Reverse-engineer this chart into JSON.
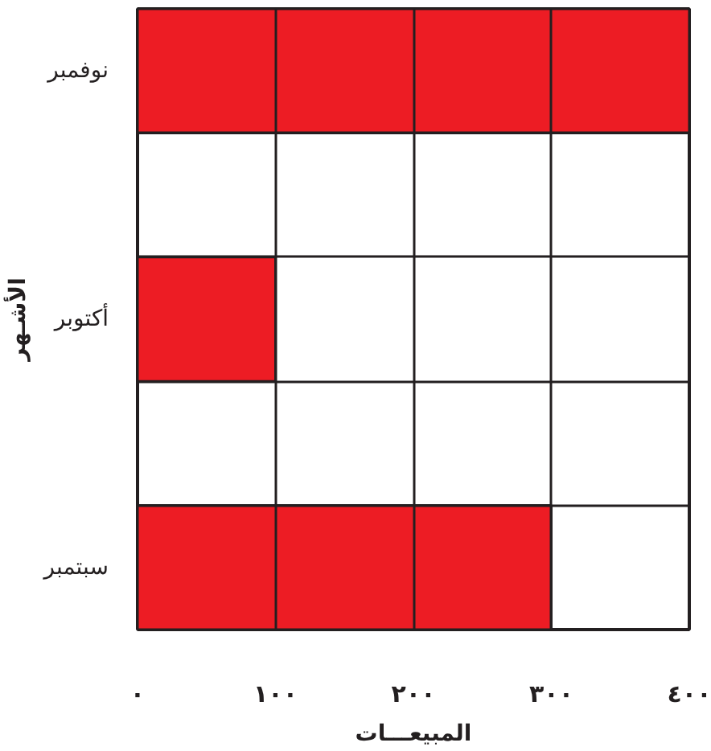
{
  "chart_data": {
    "type": "bar",
    "orientation": "horizontal",
    "xlabel": "المبيعـــات",
    "ylabel": "الأشـهر",
    "categories": [
      "نوفمبر",
      null,
      "أكتوبر",
      null,
      "سبتمبر"
    ],
    "values": [
      400,
      null,
      100,
      null,
      300
    ],
    "color": "#ed1c24",
    "xlim": [
      0,
      400
    ],
    "xticks": [
      {
        "value": 0,
        "label": "٠"
      },
      {
        "value": 100,
        "label": "١٠٠"
      },
      {
        "value": 200,
        "label": "٢٠٠"
      },
      {
        "value": 300,
        "label": "٣٠٠"
      },
      {
        "value": 400,
        "label": "٤٠٠"
      }
    ],
    "grid": true
  }
}
